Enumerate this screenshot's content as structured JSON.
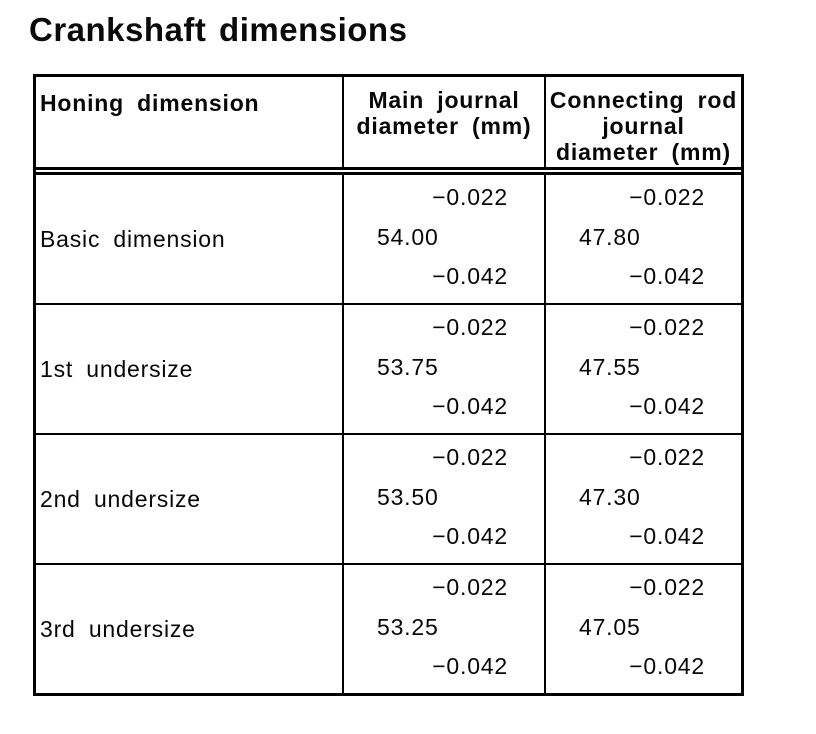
{
  "title": "Crankshaft dimensions",
  "table": {
    "header": {
      "honing": "Honing dimension",
      "main": {
        "line1": "Main journal",
        "line2": "diameter (mm)"
      },
      "rod": {
        "line1": "Connecting rod",
        "line2": "journal",
        "line3": "diameter (mm)"
      }
    },
    "rows": [
      {
        "label": "Basic dimension",
        "main": {
          "upper": "−0.022",
          "nominal": "54.00",
          "lower": "−0.042"
        },
        "rod": {
          "upper": "−0.022",
          "nominal": "47.80",
          "lower": "−0.042"
        }
      },
      {
        "label": "1st undersize",
        "main": {
          "upper": "−0.022",
          "nominal": "53.75",
          "lower": "−0.042"
        },
        "rod": {
          "upper": "−0.022",
          "nominal": "47.55",
          "lower": "−0.042"
        }
      },
      {
        "label": "2nd undersize",
        "main": {
          "upper": "−0.022",
          "nominal": "53.50",
          "lower": "−0.042"
        },
        "rod": {
          "upper": "−0.022",
          "nominal": "47.30",
          "lower": "−0.042"
        }
      },
      {
        "label": "3rd undersize",
        "main": {
          "upper": "−0.022",
          "nominal": "53.25",
          "lower": "−0.042"
        },
        "rod": {
          "upper": "−0.022",
          "nominal": "47.05",
          "lower": "−0.042"
        }
      }
    ]
  }
}
